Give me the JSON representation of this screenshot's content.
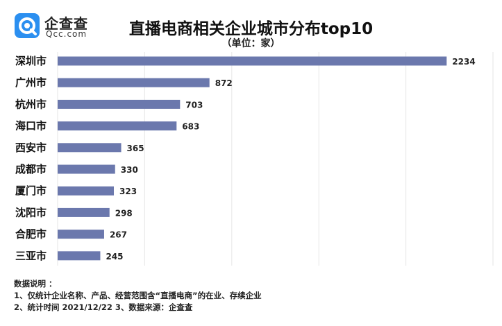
{
  "brand": {
    "name_cn": "企查查",
    "name_en": "Qcc.com",
    "logo_icon": "qcc-logo-icon",
    "logo_color": "#2b8ff0"
  },
  "chart_data": {
    "type": "bar",
    "orientation": "horizontal",
    "title": "直播电商相关企业城市分布top10",
    "subtitle": "（单位：家）",
    "categories": [
      "深圳市",
      "广州市",
      "杭州市",
      "海口市",
      "西安市",
      "成都市",
      "厦门市",
      "沈阳市",
      "合肥市",
      "三亚市"
    ],
    "values": [
      2234,
      872,
      703,
      683,
      365,
      330,
      323,
      298,
      267,
      245
    ],
    "xlim": [
      0,
      2500
    ],
    "xgrid": true,
    "bar_color": "#6b78ad",
    "grid_color": "#e6e6e6"
  },
  "notes": {
    "heading": "数据说明 ：",
    "line1": "1、仅统计企业名称、产品、经营范围含“直播电商”的在业、存续企业",
    "line2": "2、统计时间  2021/12/22      3、数据来源：企查查"
  }
}
